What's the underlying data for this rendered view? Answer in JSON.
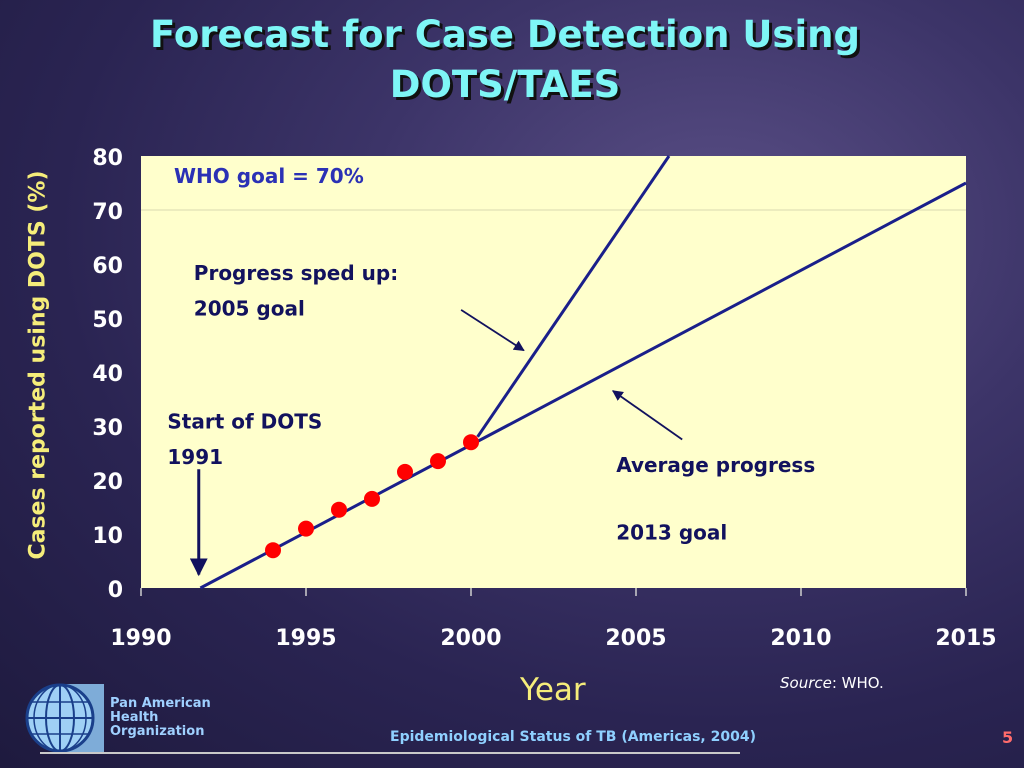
{
  "slide": {
    "title_line1": "Forecast for Case Detection Using",
    "title_line2": "DOTS/TAES",
    "source_label": "Source",
    "source_value": ": WHO.",
    "org_line1": "Pan American",
    "org_line2": "Health",
    "org_line3": "Organization",
    "footer": "Epidemiological Status of TB (Americas, 2004)",
    "page_number": "5"
  },
  "colors": {
    "plot_background": "#ffffcc",
    "line": "#1a1f8a",
    "point": "#ff0000",
    "title": "#7ef6f6",
    "axis_text": "#ffffff",
    "annotation_blue": "#2b31b5",
    "annotation_navy": "#12125e"
  },
  "chart_data": {
    "type": "line",
    "title": "",
    "xlabel": "Year",
    "ylabel": "Cases reported using DOTS  (%)",
    "xlim": [
      1990,
      2015
    ],
    "ylim": [
      0,
      80
    ],
    "x_ticks": [
      1990,
      1995,
      2000,
      2005,
      2010,
      2015
    ],
    "y_ticks": [
      0,
      10,
      20,
      30,
      40,
      50,
      60,
      70,
      80
    ],
    "grid": false,
    "points": {
      "x": [
        1994,
        1995,
        1996,
        1997,
        1998,
        1999,
        2000
      ],
      "y": [
        7,
        11,
        14.5,
        16.5,
        21.5,
        23.5,
        27
      ]
    },
    "lines": [
      {
        "x": [
          1991.8,
          2015
        ],
        "y": [
          0,
          75
        ]
      },
      {
        "x": [
          2000.2,
          2006
        ],
        "y": [
          28,
          80
        ]
      }
    ],
    "reference_line": {
      "y": 70
    },
    "annotations": [
      {
        "text": "WHO goal = 70%",
        "x": 1991,
        "y": 75,
        "color": "blue"
      },
      {
        "text": "Progress sped up:",
        "x": 1991.6,
        "y": 57,
        "color": "navy"
      },
      {
        "text": "2005 goal",
        "x": 1991.6,
        "y": 50.5,
        "color": "navy"
      },
      {
        "text": "Start of DOTS",
        "x": 1990.8,
        "y": 29.5,
        "color": "navy"
      },
      {
        "text": "1991",
        "x": 1990.8,
        "y": 23,
        "color": "navy"
      },
      {
        "text": "Average progress",
        "x": 2004.4,
        "y": 21.5,
        "color": "navy"
      },
      {
        "text": "2013 goal",
        "x": 2004.4,
        "y": 9,
        "color": "navy"
      }
    ],
    "arrows": [
      {
        "from": [
          1999.7,
          51.5
        ],
        "to": [
          2001.6,
          44
        ]
      },
      {
        "from": [
          2006.4,
          27.5
        ],
        "to": [
          2004.3,
          36.5
        ]
      },
      {
        "from": [
          1991.75,
          22
        ],
        "to": [
          1991.75,
          2.5
        ]
      }
    ]
  }
}
